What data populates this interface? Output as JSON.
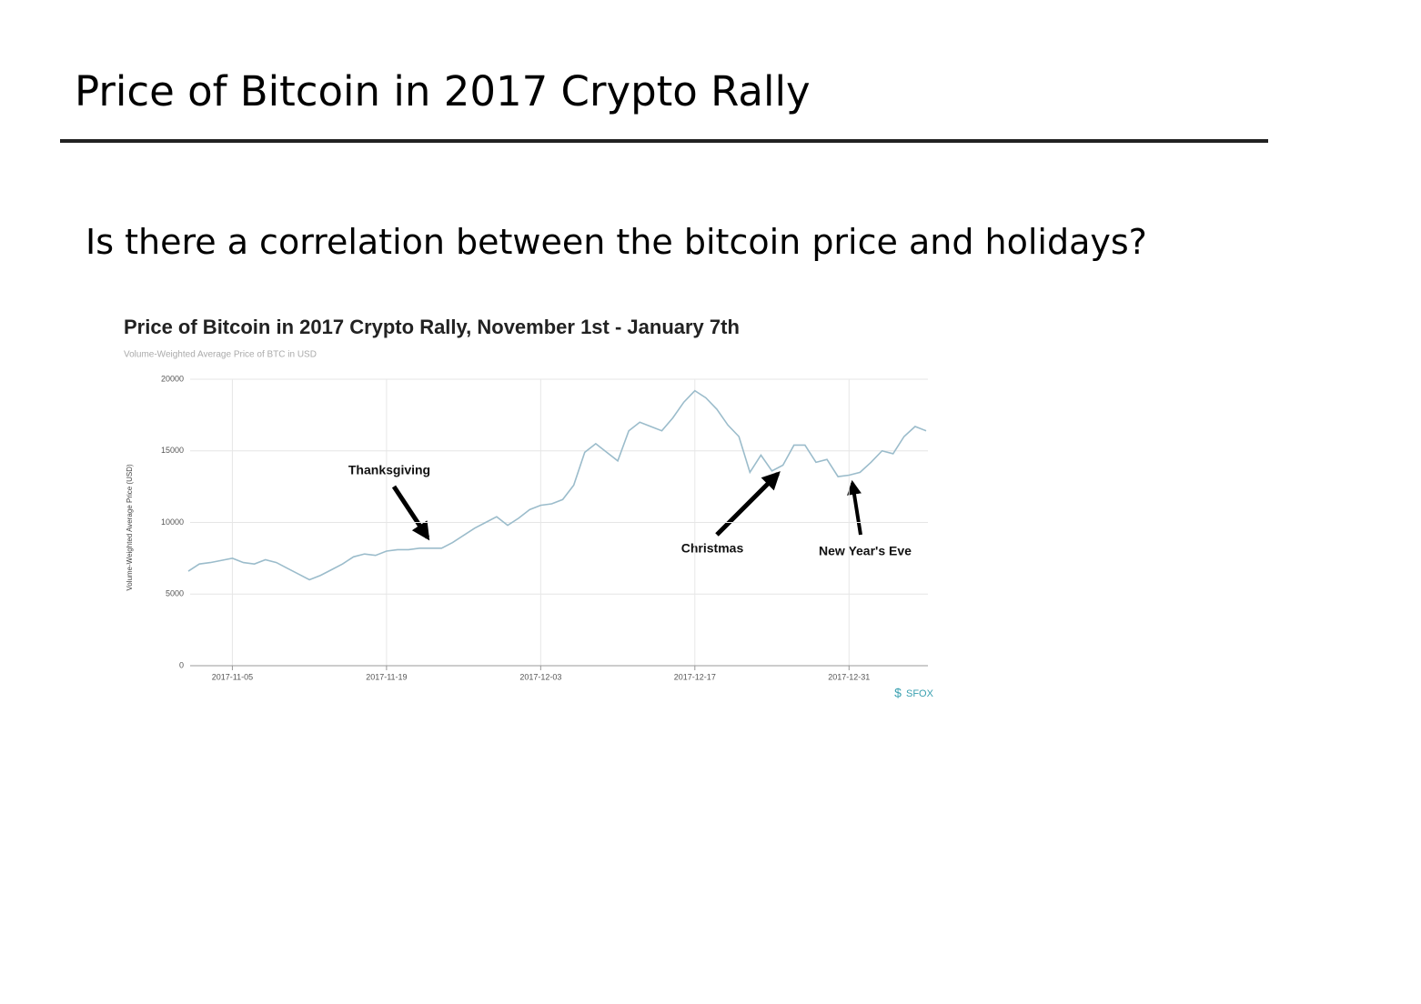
{
  "slide": {
    "title": "Price of Bitcoin in 2017 Crypto Rally",
    "question": "Is there a correlation between the bitcoin price and holidays?"
  },
  "chart_data": {
    "type": "line",
    "title": "Price of Bitcoin in 2017 Crypto Rally, November 1st - January 7th",
    "subtitle": "Volume-Weighted Average Price of BTC in USD",
    "ylabel": "Volume-Weighted Average Price (USD)",
    "source": "SFOX",
    "annotations": [
      "Thanksgiving",
      "Christmas",
      "New Year's Eve"
    ],
    "color": "#9bbccb",
    "grid": true,
    "x": [
      "2017-11-01",
      "2017-11-02",
      "2017-11-03",
      "2017-11-04",
      "2017-11-05",
      "2017-11-06",
      "2017-11-07",
      "2017-11-08",
      "2017-11-09",
      "2017-11-10",
      "2017-11-11",
      "2017-11-12",
      "2017-11-13",
      "2017-11-14",
      "2017-11-15",
      "2017-11-16",
      "2017-11-17",
      "2017-11-18",
      "2017-11-19",
      "2017-11-20",
      "2017-11-21",
      "2017-11-22",
      "2017-11-23",
      "2017-11-24",
      "2017-11-25",
      "2017-11-26",
      "2017-11-27",
      "2017-11-28",
      "2017-11-29",
      "2017-11-30",
      "2017-12-01",
      "2017-12-02",
      "2017-12-03",
      "2017-12-04",
      "2017-12-05",
      "2017-12-06",
      "2017-12-07",
      "2017-12-08",
      "2017-12-09",
      "2017-12-10",
      "2017-12-11",
      "2017-12-12",
      "2017-12-13",
      "2017-12-14",
      "2017-12-15",
      "2017-12-16",
      "2017-12-17",
      "2017-12-18",
      "2017-12-19",
      "2017-12-20",
      "2017-12-21",
      "2017-12-22",
      "2017-12-23",
      "2017-12-24",
      "2017-12-25",
      "2017-12-26",
      "2017-12-27",
      "2017-12-28",
      "2017-12-29",
      "2017-12-30",
      "2017-12-31",
      "2018-01-01",
      "2018-01-02",
      "2018-01-03",
      "2018-01-04",
      "2018-01-05",
      "2018-01-06",
      "2018-01-07"
    ],
    "values": [
      6600,
      7100,
      7200,
      7350,
      7500,
      7200,
      7100,
      7400,
      7200,
      6800,
      6400,
      6000,
      6300,
      6700,
      7100,
      7600,
      7800,
      7700,
      8000,
      8100,
      8100,
      8200,
      8200,
      8200,
      8600,
      9100,
      9600,
      10000,
      10400,
      9800,
      10300,
      10900,
      11200,
      11300,
      11600,
      12600,
      14900,
      15500,
      14900,
      14300,
      16400,
      17000,
      16700,
      16400,
      17300,
      18400,
      19200,
      18700,
      17900,
      16800,
      16000,
      13500,
      14700,
      13600,
      14000,
      15400,
      15400,
      14200,
      14400,
      13200,
      13300,
      13500,
      14200,
      15000,
      14800,
      16000,
      16700,
      16400
    ],
    "xlim": [
      "2017-11-01",
      "2018-01-07"
    ],
    "xticks": [
      "2017-11-05",
      "2017-11-19",
      "2017-12-03",
      "2017-12-17",
      "2017-12-31"
    ],
    "ylim": [
      0,
      20000
    ],
    "yticks": [
      0,
      5000,
      10000,
      15000,
      20000
    ]
  }
}
